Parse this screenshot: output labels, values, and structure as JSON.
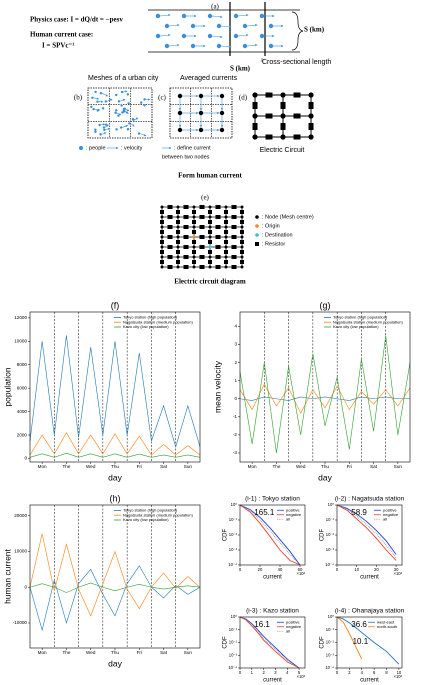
{
  "diagram": {
    "a_label": "(a)",
    "physics_case": "Physics case: I = dQ/dt = −pesv",
    "human_case_1": "Human current case:",
    "human_case_2": "I = SPVc⁻¹",
    "s_km_1": "S (km)",
    "cross_sectional": "Cross-sectional length",
    "s_km_2": "S (km)",
    "meshes": "Meshes of a urban city",
    "averaged": "Averaged currents",
    "b": "(b)",
    "c": "(c)",
    "d": "(d)",
    "people": ": people",
    "velocity": ": velocity",
    "define_current_1": ": define current",
    "define_current_2": "between two nodes",
    "electric_circuit": "Electric Circuit",
    "form": "Form human current",
    "e": "(e)",
    "legend_node": ": Node (Mesh centre)",
    "legend_origin": ": Origin",
    "legend_destination": ": Destination",
    "legend_resistor": ": Resistor",
    "circuit_title": "Electric circuit diagram"
  },
  "chart_data": [
    {
      "type": "line",
      "title": "(f)",
      "x_label": "day",
      "y_label": "population",
      "day_lines": true,
      "legend": "upper right",
      "x": [
        0,
        0.5,
        1,
        1.5,
        2,
        2.5,
        3,
        3.5,
        4,
        4.5,
        5,
        5.5,
        6,
        6.5,
        7
      ],
      "xlim": [
        0,
        7
      ],
      "xticks": [
        {
          "value": 0.5,
          "label": "Mon"
        },
        {
          "value": 1.5,
          "label": "The"
        },
        {
          "value": 2.5,
          "label": "Wed"
        },
        {
          "value": 3.5,
          "label": "Thu"
        },
        {
          "value": 4.5,
          "label": "Fri"
        },
        {
          "value": 5.5,
          "label": "Sat"
        },
        {
          "value": 6.5,
          "label": "Sun"
        }
      ],
      "ylim": [
        -300,
        12500
      ],
      "yticks": [
        0,
        2000,
        4000,
        6000,
        8000,
        10000,
        12000
      ],
      "series": [
        {
          "name": "Tokyo station (high population)",
          "color": "#1f77b4",
          "values": [
            1500,
            10000,
            2000,
            10500,
            1800,
            9500,
            2000,
            10000,
            2000,
            9000,
            1500,
            4500,
            1000,
            4500,
            1000
          ]
        },
        {
          "name": "Nagatsuda station (medium population)",
          "color": "#ff7f0e",
          "values": [
            300,
            2000,
            400,
            2200,
            400,
            2000,
            400,
            2100,
            400,
            1900,
            300,
            1200,
            300,
            1100,
            300
          ]
        },
        {
          "name": "Kazo city (low population)",
          "color": "#2ca02c",
          "values": [
            100,
            400,
            100,
            450,
            100,
            400,
            100,
            400,
            100,
            380,
            100,
            300,
            100,
            300,
            100
          ]
        }
      ]
    },
    {
      "type": "line",
      "title": "(g)",
      "x_label": "day",
      "y_label": "mean velocity",
      "day_lines": true,
      "legend": "upper right",
      "x": [
        0,
        0.5,
        1,
        1.5,
        2,
        2.5,
        3,
        3.5,
        4,
        4.5,
        5,
        5.5,
        6,
        6.5,
        7
      ],
      "xlim": [
        0,
        7
      ],
      "xticks": [
        {
          "value": 0.5,
          "label": "Mon"
        },
        {
          "value": 1.5,
          "label": "The"
        },
        {
          "value": 2.5,
          "label": "Wed"
        },
        {
          "value": 3.5,
          "label": "Thu"
        },
        {
          "value": 4.5,
          "label": "Fri"
        },
        {
          "value": 5.5,
          "label": "Sat"
        },
        {
          "value": 6.5,
          "label": "Sun"
        }
      ],
      "ylim": [
        -3.5,
        4.8
      ],
      "yticks": [
        -3,
        -2,
        -1,
        0,
        1,
        2,
        3,
        4
      ],
      "series": [
        {
          "name": "Tokyo station (high population)",
          "color": "#1f77b4",
          "values": [
            0,
            -0.1,
            0.1,
            0,
            -0.1,
            0.1,
            0,
            0.1,
            0,
            -0.1,
            0.1,
            0,
            0.1,
            0,
            0
          ]
        },
        {
          "name": "Nagatsuda station (medium population)",
          "color": "#ff7f0e",
          "values": [
            0.5,
            -0.6,
            0.8,
            -0.4,
            0.6,
            -0.8,
            0.5,
            -0.5,
            0.7,
            -0.6,
            0.4,
            -0.3,
            0.5,
            -0.4,
            0.6
          ]
        },
        {
          "name": "Kazo city (low population)",
          "color": "#2ca02c",
          "values": [
            1.5,
            -2.5,
            2,
            -3,
            1.8,
            -2,
            2.5,
            -1.5,
            1.2,
            -2.8,
            2.2,
            -1.8,
            3.5,
            -2,
            2
          ]
        }
      ]
    },
    {
      "type": "line",
      "title": "(h)",
      "x_label": "day",
      "y_label": "human current",
      "day_lines": true,
      "legend": "upper right",
      "x": [
        0,
        0.5,
        1,
        1.5,
        2,
        2.5,
        3,
        3.5,
        4,
        4.5,
        5,
        5.5,
        6,
        6.5,
        7
      ],
      "xlim": [
        0,
        7
      ],
      "xticks": [
        {
          "value": 0.5,
          "label": "Mon"
        },
        {
          "value": 1.5,
          "label": "The"
        },
        {
          "value": 2.5,
          "label": "Wed"
        },
        {
          "value": 3.5,
          "label": "Thu"
        },
        {
          "value": 4.5,
          "label": "Fri"
        },
        {
          "value": 5.5,
          "label": "Sat"
        },
        {
          "value": 6.5,
          "label": "Sun"
        }
      ],
      "ylim": [
        -17000,
        23000
      ],
      "yticks": [
        -10000,
        0,
        10000,
        20000
      ],
      "series": [
        {
          "name": "Tokyo station (high population)",
          "color": "#1f77b4",
          "values": [
            0,
            -12000,
            2000,
            -10000,
            1000,
            5000,
            -2000,
            -8000,
            1000,
            6000,
            0,
            -3000,
            500,
            -2000,
            0
          ]
        },
        {
          "name": "Nagatsuda station (medium population)",
          "color": "#ff7f0e",
          "values": [
            0,
            15000,
            -1000,
            12000,
            -500,
            -8000,
            1000,
            10000,
            -500,
            -6000,
            0,
            4000,
            -300,
            3000,
            0
          ]
        },
        {
          "name": "Kazo city (low population)",
          "color": "#2ca02c",
          "values": [
            0,
            1000,
            0,
            -1500,
            0,
            1200,
            0,
            -1000,
            0,
            800,
            0,
            -500,
            0,
            400,
            0
          ]
        }
      ]
    },
    {
      "type": "line",
      "title": "(i-1) : Tokyo station",
      "x_label": "current",
      "y_label": "CDF",
      "log_y": true,
      "legend": "upper right",
      "x_offset_label": "×10³",
      "annotations": [
        "165.1"
      ],
      "x": [
        0,
        10,
        20,
        30,
        40,
        50,
        60
      ],
      "xlim": [
        0,
        65
      ],
      "xticks": [
        0,
        20,
        40,
        60
      ],
      "ylim": [
        0.0001,
        1
      ],
      "yticks": [
        {
          "value": 1,
          "label": "10⁰"
        },
        {
          "value": 0.1,
          "label": "10⁻¹"
        },
        {
          "value": 0.01,
          "label": "10⁻²"
        },
        {
          "value": 0.001,
          "label": "10⁻³"
        },
        {
          "value": 0.0001,
          "label": "10⁻⁴"
        }
      ],
      "series": [
        {
          "name": "positive",
          "color": "#1f3fd0",
          "values": [
            1,
            0.5,
            0.15,
            0.03,
            0.005,
            0.0008,
            0.0001
          ]
        },
        {
          "name": "negative",
          "color": "#e8412b",
          "values": [
            1,
            0.35,
            0.06,
            0.008,
            0.001,
            0.0002,
            0.0001
          ]
        },
        {
          "name": "all",
          "color": "#888888",
          "linestyle": "dotted",
          "values": [
            1,
            0.42,
            0.1,
            0.018,
            0.003,
            0.0005,
            0.0001
          ]
        }
      ]
    },
    {
      "type": "line",
      "title": "(i-2) : Nagatsuda station",
      "x_label": "current",
      "y_label": "CDF",
      "log_y": true,
      "legend": "upper right",
      "x_offset_label": "×10³",
      "annotations": [
        "58.9"
      ],
      "x": [
        0,
        5,
        10,
        15,
        20,
        25,
        30
      ],
      "xlim": [
        0,
        33
      ],
      "xticks": [
        0,
        10,
        20,
        30
      ],
      "ylim": [
        0.0001,
        1
      ],
      "yticks": [
        {
          "value": 1,
          "label": "10⁰"
        },
        {
          "value": 0.1,
          "label": "10⁻¹"
        },
        {
          "value": 0.01,
          "label": "10⁻²"
        },
        {
          "value": 0.001,
          "label": "10⁻³"
        },
        {
          "value": 0.0001,
          "label": "10⁻⁴"
        }
      ],
      "series": [
        {
          "name": "positive",
          "color": "#1f3fd0",
          "values": [
            1,
            0.6,
            0.25,
            0.08,
            0.02,
            0.004,
            0.0005
          ]
        },
        {
          "name": "negative",
          "color": "#e8412b",
          "values": [
            1,
            0.45,
            0.12,
            0.03,
            0.006,
            0.001,
            0.0002
          ]
        },
        {
          "name": "all",
          "color": "#888888",
          "linestyle": "dotted",
          "values": [
            1,
            0.52,
            0.18,
            0.05,
            0.012,
            0.002,
            0.0003
          ]
        }
      ]
    },
    {
      "type": "line",
      "title": "(i-3) : Kazo station",
      "x_label": "current",
      "y_label": "CDF",
      "log_y": true,
      "legend": "upper right",
      "x_offset_label": "×10³",
      "annotations": [
        "16.1"
      ],
      "x": [
        0,
        0.5,
        1,
        1.5,
        2,
        3,
        4,
        5
      ],
      "xlim": [
        0,
        5.5
      ],
      "xticks": [
        0,
        1,
        2,
        3,
        4,
        5
      ],
      "ylim": [
        0.0001,
        1
      ],
      "yticks": [
        {
          "value": 1,
          "label": "10⁰"
        },
        {
          "value": 0.1,
          "label": "10⁻¹"
        },
        {
          "value": 0.01,
          "label": "10⁻²"
        },
        {
          "value": 0.001,
          "label": "10⁻³"
        },
        {
          "value": 0.0001,
          "label": "10⁻⁴"
        }
      ],
      "series": [
        {
          "name": "positive",
          "color": "#1f3fd0",
          "values": [
            1,
            0.7,
            0.3,
            0.1,
            0.03,
            0.004,
            0.0005,
            0.0001
          ]
        },
        {
          "name": "negative",
          "color": "#e8412b",
          "values": [
            1,
            0.6,
            0.2,
            0.06,
            0.015,
            0.002,
            0.0003,
            0.0001
          ]
        },
        {
          "name": "all",
          "color": "#888888",
          "linestyle": "dotted",
          "values": [
            1,
            0.65,
            0.25,
            0.08,
            0.02,
            0.003,
            0.0004,
            0.0001
          ]
        }
      ]
    },
    {
      "type": "line",
      "title": "(i-4) : Ohanajaya station",
      "x_label": "current",
      "y_label": "CDF",
      "log_y": true,
      "legend": "upper right",
      "x_offset_label": "×10³",
      "annotations": [
        "36.6",
        "10.1"
      ],
      "x": [
        0,
        1,
        2,
        3,
        4,
        6,
        8,
        10
      ],
      "xlim": [
        0,
        10.5
      ],
      "xticks": [
        0,
        2,
        4,
        6,
        8,
        10
      ],
      "ylim": [
        0.0001,
        1
      ],
      "yticks": [
        {
          "value": 1,
          "label": "10⁰"
        },
        {
          "value": 0.1,
          "label": "10⁻¹"
        },
        {
          "value": 0.01,
          "label": "10⁻²"
        },
        {
          "value": 0.001,
          "label": "10⁻³"
        },
        {
          "value": 0.0001,
          "label": "10⁻⁴"
        }
      ],
      "series": [
        {
          "name": "west-east",
          "color": "#1f77b4",
          "values": [
            1,
            0.7,
            0.35,
            0.15,
            0.06,
            0.01,
            0.002,
            0.0002
          ]
        },
        {
          "name": "north-south",
          "color": "#ff7f0e",
          "values": [
            1,
            0.4,
            0.05,
            0.005,
            0.0005,
            null,
            null,
            null
          ]
        }
      ]
    }
  ]
}
